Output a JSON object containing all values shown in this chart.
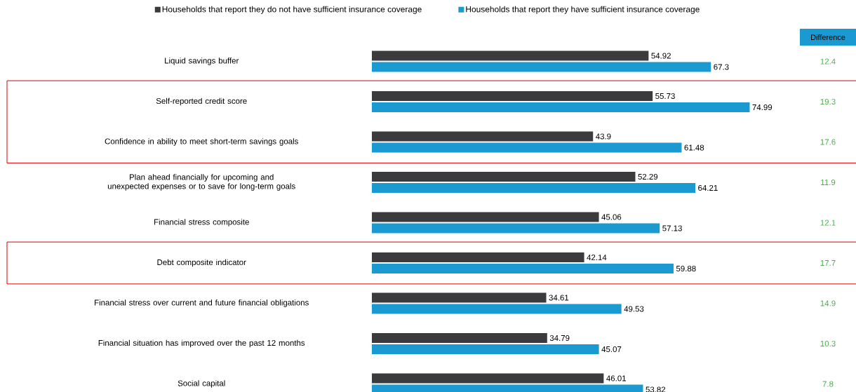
{
  "chart_data": {
    "type": "bar",
    "orientation": "horizontal",
    "data_labels": true,
    "legend": "top",
    "categories": [
      "Liquid savings buffer",
      "Self-reported credit score",
      "Confidence in ability to meet short-term savings goals",
      "Plan ahead financially for upcoming and unexpected expenses or to save for long-term goals",
      "Financial stress composite",
      "Debt composite indicator",
      "Financial stress over current and future financial obligations",
      "Financial situation has improved over the past 12 months",
      "Social capital"
    ],
    "series": [
      {
        "name": "Households that report they do not have sufficient insurance coverage",
        "color": "#3b3b3d",
        "values": [
          54.92,
          55.73,
          43.9,
          52.29,
          45.06,
          42.14,
          34.61,
          34.79,
          46.01
        ]
      },
      {
        "name": "Households that report they have sufficient insurance coverage",
        "color": "#1a9ad0",
        "values": [
          67.3,
          74.99,
          61.48,
          64.21,
          57.13,
          59.88,
          49.53,
          45.07,
          53.82
        ]
      }
    ],
    "annotations": [
      "Difference",
      "12.4",
      "19.3",
      "17.6",
      "11.9",
      "12.1",
      "17.7",
      "14.9",
      "10.3",
      "7.8"
    ]
  }
}
